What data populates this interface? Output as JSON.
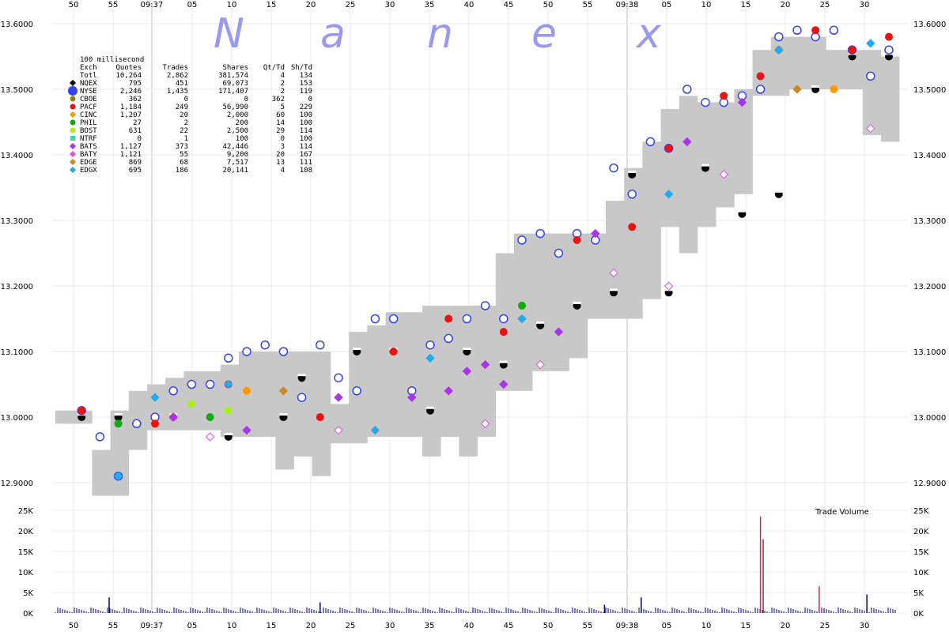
{
  "watermark_letters": [
    "N",
    "a",
    "n",
    "e",
    "x"
  ],
  "chart_data": [
    {
      "type": "scatter",
      "title": "",
      "xlabel": "",
      "ylabel": "",
      "ylim": [
        12.87,
        13.61
      ],
      "x_ticks": [
        "50",
        "55",
        "09:37",
        "05",
        "10",
        "15",
        "20",
        "25",
        "30",
        "35",
        "40",
        "45",
        "50",
        "55",
        "09:38",
        "05",
        "10",
        "15",
        "20",
        "25",
        "30"
      ],
      "y_ticks": [
        "13.6000",
        "13.5000",
        "13.4000",
        "13.3000",
        "13.2000",
        "13.1000",
        "13.0000",
        "12.9000"
      ],
      "y_tick_values": [
        13.6,
        13.5,
        13.4,
        13.3,
        13.2,
        13.1,
        13.0,
        12.9
      ],
      "grid": true,
      "legend_position": "top-left",
      "range_band": {
        "name": "",
        "color": "#c8c8c8",
        "low": [
          12.99,
          12.99,
          12.88,
          12.88,
          12.95,
          12.98,
          12.98,
          12.98,
          12.98,
          12.97,
          12.97,
          12.97,
          12.92,
          12.94,
          12.91,
          12.96,
          12.96,
          12.97,
          12.97,
          12.97,
          12.94,
          12.97,
          12.94,
          12.97,
          13.04,
          13.04,
          13.07,
          13.07,
          13.09,
          13.15,
          13.15,
          13.15,
          13.18,
          13.29,
          13.25,
          13.29,
          13.32,
          13.34,
          13.49,
          13.49,
          13.5,
          13.5,
          13.5,
          13.5,
          13.43,
          13.42
        ],
        "high": [
          13.01,
          13.01,
          12.95,
          13.01,
          13.04,
          13.05,
          13.06,
          13.07,
          13.07,
          13.08,
          13.1,
          13.1,
          13.1,
          13.1,
          13.1,
          13.02,
          13.13,
          13.14,
          13.16,
          13.16,
          13.17,
          13.17,
          13.17,
          13.17,
          13.25,
          13.28,
          13.28,
          13.28,
          13.28,
          13.28,
          13.33,
          13.38,
          13.42,
          13.47,
          13.49,
          13.48,
          13.48,
          13.5,
          13.56,
          13.58,
          13.58,
          13.58,
          13.56,
          13.56,
          13.56,
          13.55
        ]
      },
      "series": [
        {
          "name": "NQEX",
          "color": "#000000",
          "marker": "circle-half",
          "x": [
            1,
            3,
            6,
            9,
            12,
            13,
            16,
            18,
            20,
            22,
            24,
            26,
            28,
            30,
            31,
            33,
            35,
            37,
            39,
            41,
            43,
            45
          ],
          "y": [
            13.0,
            13.0,
            13.0,
            12.97,
            13.0,
            13.06,
            13.1,
            13.1,
            13.01,
            13.1,
            13.08,
            13.14,
            13.17,
            13.19,
            13.37,
            13.19,
            13.38,
            13.31,
            13.34,
            13.5,
            13.55,
            13.55
          ]
        },
        {
          "name": "NYSE",
          "color": "#3344ee",
          "marker": "circle-open",
          "x": [
            1,
            2,
            3,
            4,
            5,
            6,
            7,
            8,
            9,
            10,
            11,
            12,
            13,
            14,
            15,
            16,
            17,
            18,
            19,
            20,
            21,
            22,
            23,
            24,
            25,
            26,
            27,
            28,
            29,
            30,
            31,
            32,
            33,
            34,
            35,
            36,
            37,
            38,
            39,
            40,
            41,
            42,
            43,
            44,
            45
          ],
          "y": [
            13.01,
            12.97,
            12.91,
            12.99,
            13.0,
            13.04,
            13.05,
            13.05,
            13.09,
            13.1,
            13.11,
            13.1,
            13.03,
            13.11,
            13.06,
            13.04,
            13.15,
            13.15,
            13.04,
            13.11,
            13.12,
            13.15,
            13.17,
            13.15,
            13.27,
            13.28,
            13.25,
            13.28,
            13.27,
            13.38,
            13.34,
            13.42,
            13.41,
            13.5,
            13.48,
            13.48,
            13.49,
            13.5,
            13.58,
            13.59,
            13.58,
            13.59,
            13.56,
            13.52,
            13.56
          ]
        },
        {
          "name": "CBOE",
          "color": "#888800",
          "marker": "circle",
          "x": [],
          "y": []
        },
        {
          "name": "PACF",
          "color": "#ee1111",
          "marker": "circle",
          "x": [
            1,
            5,
            9,
            14,
            18,
            21,
            24,
            28,
            31,
            33,
            36,
            38,
            41,
            43,
            45
          ],
          "y": [
            13.01,
            12.99,
            13.05,
            13.0,
            13.1,
            13.15,
            13.13,
            13.27,
            13.29,
            13.41,
            13.49,
            13.52,
            13.59,
            13.56,
            13.58
          ]
        },
        {
          "name": "CINC",
          "color": "#ff9900",
          "marker": "circle",
          "x": [
            6,
            10,
            39,
            42
          ],
          "y": [
            13.0,
            13.04,
            13.56,
            13.5
          ]
        },
        {
          "name": "PHIL",
          "color": "#11aa11",
          "marker": "circle",
          "x": [
            3,
            8,
            25
          ],
          "y": [
            12.99,
            13.0,
            13.17
          ]
        },
        {
          "name": "BOST",
          "color": "#aaee22",
          "marker": "circle",
          "x": [
            7,
            9
          ],
          "y": [
            13.02,
            13.01
          ]
        },
        {
          "name": "NTRF",
          "color": "#33ddaa",
          "marker": "square",
          "x": [],
          "y": []
        },
        {
          "name": "BATS",
          "color": "#aa33ee",
          "marker": "diamond",
          "x": [
            6,
            10,
            15,
            19,
            21,
            22,
            23,
            24,
            27,
            29,
            34,
            37,
            39
          ],
          "y": [
            13.0,
            12.98,
            13.03,
            13.03,
            13.04,
            13.07,
            13.08,
            13.05,
            13.13,
            13.28,
            13.42,
            13.48,
            13.56
          ]
        },
        {
          "name": "BATY",
          "color": "#dd55dd",
          "marker": "diamond-open",
          "x": [
            8,
            15,
            23,
            26,
            30,
            33,
            36,
            44
          ],
          "y": [
            12.97,
            12.98,
            12.99,
            13.08,
            13.22,
            13.2,
            13.37,
            13.44
          ]
        },
        {
          "name": "EDGE",
          "color": "#cc8822",
          "marker": "diamond",
          "x": [
            12,
            40
          ],
          "y": [
            13.04,
            13.5
          ]
        },
        {
          "name": "EDGX",
          "color": "#22aaee",
          "marker": "diamond",
          "x": [
            3,
            5,
            9,
            17,
            20,
            25,
            33,
            39,
            44
          ],
          "y": [
            12.91,
            13.03,
            13.05,
            12.98,
            13.09,
            13.15,
            13.34,
            13.56,
            13.57
          ]
        }
      ]
    },
    {
      "type": "bar",
      "title": "Trade Volume",
      "ylim": [
        0,
        25000
      ],
      "y_ticks": [
        "25K",
        "20K",
        "15K",
        "10K",
        "5K",
        "0K"
      ],
      "y_tick_values": [
        25000,
        20000,
        15000,
        10000,
        5000,
        0
      ],
      "spikes": [
        {
          "x": 2.5,
          "value": 3800,
          "color": "#000080"
        },
        {
          "x": 14.0,
          "value": 2600,
          "color": "#000080"
        },
        {
          "x": 29.5,
          "value": 2000,
          "color": "#000080"
        },
        {
          "x": 31.5,
          "value": 3800,
          "color": "#000080"
        },
        {
          "x": 38.0,
          "value": 23500,
          "color": "#cc2266"
        },
        {
          "x": 38.15,
          "value": 18000,
          "color": "#cc2222"
        },
        {
          "x": 41.2,
          "value": 6500,
          "color": "#cc2266"
        },
        {
          "x": 43.8,
          "value": 4500,
          "color": "#000080"
        }
      ]
    }
  ],
  "legend": {
    "title": "100 millisecond",
    "columns": [
      "Exch",
      "Quotes",
      "Trades",
      "Shares",
      "Qt/Td",
      "Sh/Td"
    ],
    "rows": [
      {
        "exch": "Totl",
        "quotes": "10,264",
        "trades": "2,862",
        "shares": "381,574",
        "qt_td": "4",
        "sh_td": "134",
        "color": "",
        "marker": "none"
      },
      {
        "exch": "NQEX",
        "quotes": "795",
        "trades": "451",
        "shares": "69,073",
        "qt_td": "2",
        "sh_td": "153",
        "color": "#000000",
        "marker": "diamond"
      },
      {
        "exch": "NYSE",
        "quotes": "2,246",
        "trades": "1,435",
        "shares": "171,407",
        "qt_td": "2",
        "sh_td": "119",
        "color": "#3344ee",
        "marker": "big-circle"
      },
      {
        "exch": "CBOE",
        "quotes": "362",
        "trades": "0",
        "shares": "0",
        "qt_td": "362",
        "sh_td": "0",
        "color": "#888800",
        "marker": "circle"
      },
      {
        "exch": "PACF",
        "quotes": "1,184",
        "trades": "249",
        "shares": "56,990",
        "qt_td": "5",
        "sh_td": "229",
        "color": "#ee1111",
        "marker": "circle"
      },
      {
        "exch": "CINC",
        "quotes": "1,207",
        "trades": "20",
        "shares": "2,000",
        "qt_td": "60",
        "sh_td": "100",
        "color": "#ff9900",
        "marker": "diamond"
      },
      {
        "exch": "PHIL",
        "quotes": "27",
        "trades": "2",
        "shares": "200",
        "qt_td": "14",
        "sh_td": "100",
        "color": "#11aa11",
        "marker": "circle"
      },
      {
        "exch": "BOST",
        "quotes": "631",
        "trades": "22",
        "shares": "2,500",
        "qt_td": "29",
        "sh_td": "114",
        "color": "#aaee22",
        "marker": "circle"
      },
      {
        "exch": "NTRF",
        "quotes": "0",
        "trades": "1",
        "shares": "100",
        "qt_td": "0",
        "sh_td": "100",
        "color": "#33ddaa",
        "marker": "square"
      },
      {
        "exch": "BATS",
        "quotes": "1,127",
        "trades": "373",
        "shares": "42,446",
        "qt_td": "3",
        "sh_td": "114",
        "color": "#aa33ee",
        "marker": "diamond"
      },
      {
        "exch": "BATY",
        "quotes": "1,121",
        "trades": "55",
        "shares": "9,200",
        "qt_td": "20",
        "sh_td": "167",
        "color": "#dd55dd",
        "marker": "diamond"
      },
      {
        "exch": "EDGE",
        "quotes": "869",
        "trades": "68",
        "shares": "7,517",
        "qt_td": "13",
        "sh_td": "111",
        "color": "#cc8822",
        "marker": "diamond"
      },
      {
        "exch": "EDGX",
        "quotes": "695",
        "trades": "186",
        "shares": "20,141",
        "qt_td": "4",
        "sh_td": "108",
        "color": "#22aaee",
        "marker": "diamond"
      }
    ]
  }
}
